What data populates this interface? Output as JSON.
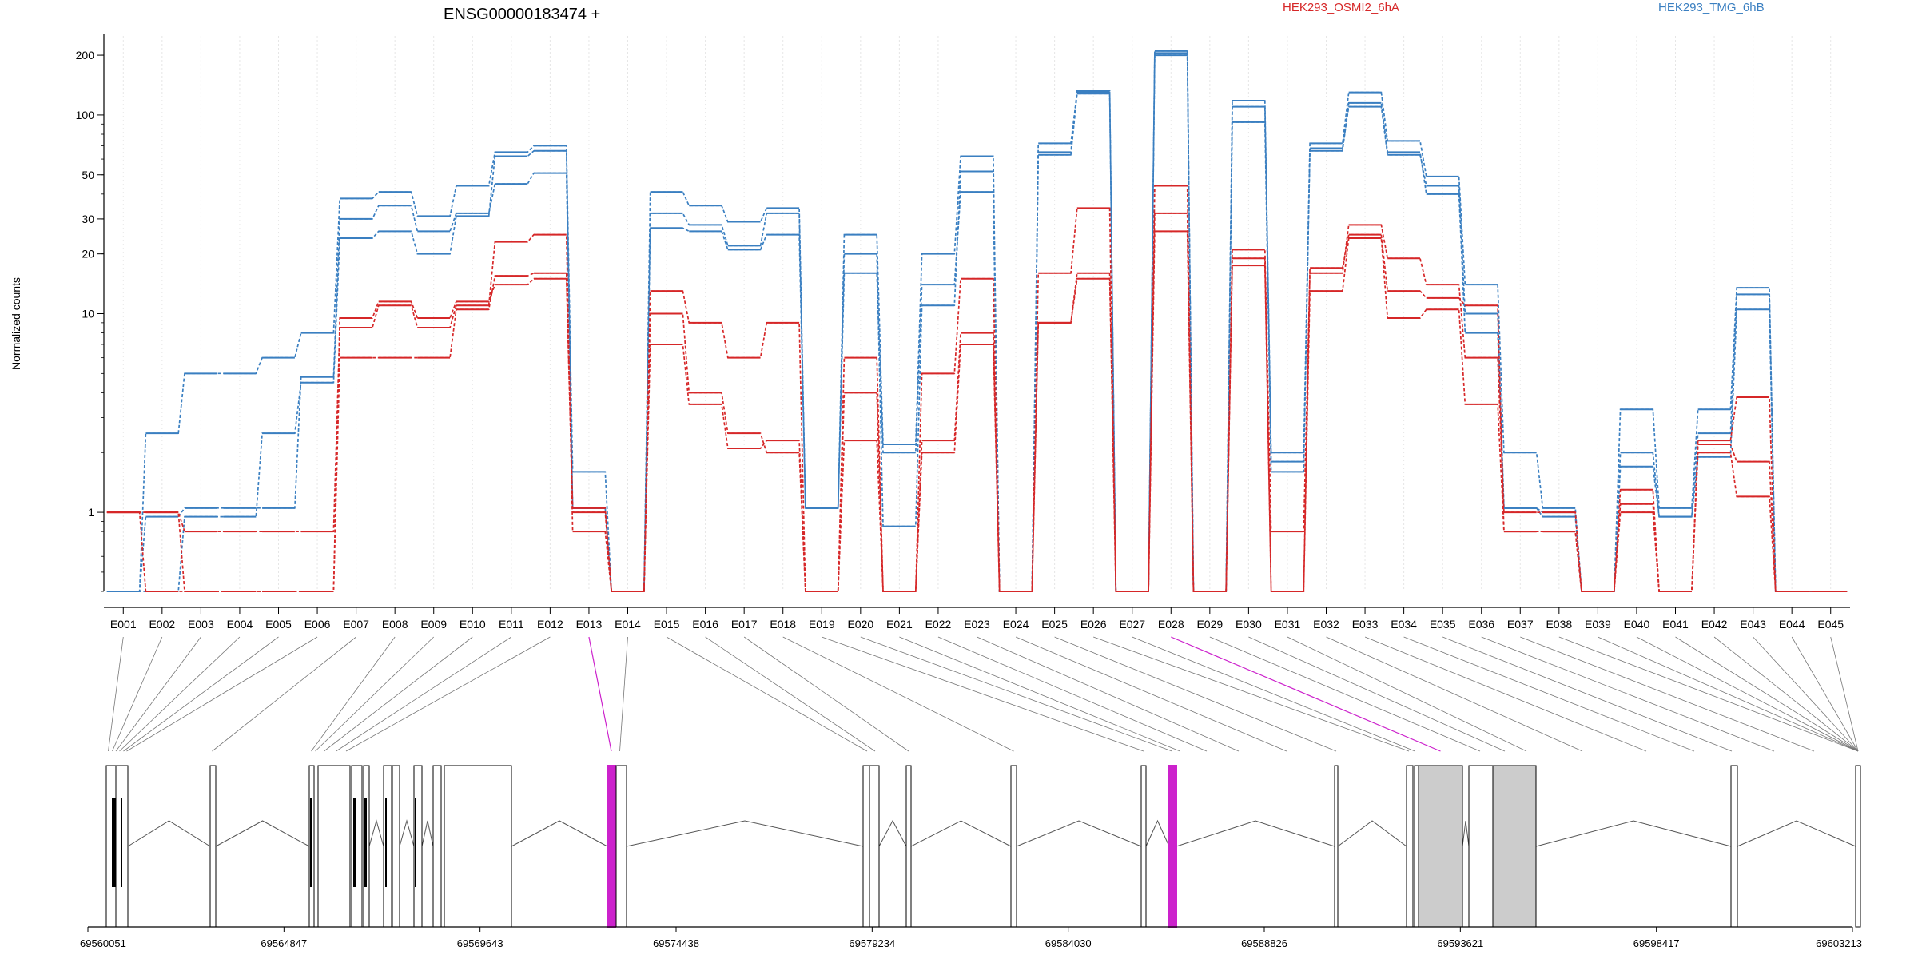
{
  "chart_data": {
    "type": "line",
    "title": "ENSG00000183474 +",
    "ylabel": "Normalized counts",
    "yscale": "log",
    "ylim": [
      0.4,
      250
    ],
    "yticks": [
      1,
      10,
      20,
      30,
      50,
      100,
      200
    ],
    "categories": [
      "E001",
      "E002",
      "E003",
      "E004",
      "E005",
      "E006",
      "E007",
      "E008",
      "E009",
      "E010",
      "E011",
      "E012",
      "E013",
      "E014",
      "E015",
      "E016",
      "E017",
      "E018",
      "E019",
      "E020",
      "E021",
      "E022",
      "E023",
      "E024",
      "E025",
      "E026",
      "E027",
      "E028",
      "E029",
      "E030",
      "E031",
      "E032",
      "E033",
      "E034",
      "E035",
      "E036",
      "E037",
      "E038",
      "E039",
      "E040",
      "E041",
      "E042",
      "E043",
      "E044",
      "E045"
    ],
    "legend": [
      {
        "name": "HEK293_OSMI2_6hA",
        "color": "#d62728"
      },
      {
        "name": "HEK293_TMG_6hB",
        "color": "#3a7fc1"
      }
    ],
    "series": [
      {
        "group": "HEK293_TMG_6hB",
        "color": "#3a7fc1",
        "values": [
          0.4,
          2.5,
          5,
          5,
          6,
          8,
          38,
          41,
          31,
          44,
          65,
          70,
          1.6,
          0.4,
          41,
          35,
          29,
          34,
          1.05,
          25,
          2.2,
          20,
          62,
          0.4,
          72,
          130,
          0.4,
          210,
          0.4,
          118,
          2,
          72,
          130,
          74,
          49,
          14,
          2,
          1.05,
          0.4,
          3.3,
          1.05,
          3.3,
          13.5,
          0.4,
          0.4
        ]
      },
      {
        "group": "HEK293_TMG_6hB",
        "color": "#3a7fc1",
        "values": [
          0.4,
          0.95,
          1.05,
          1.05,
          1.05,
          4.8,
          30,
          35,
          26,
          32,
          45,
          51,
          1.05,
          0.4,
          32,
          28,
          22,
          32,
          1.05,
          20,
          0.85,
          11,
          52,
          0.4,
          63,
          128,
          0.4,
          200,
          0.4,
          110,
          1.8,
          68,
          110,
          63,
          44,
          10,
          1.05,
          1.0,
          0.4,
          2.0,
          0.95,
          2.5,
          12.5,
          0.4,
          0.4
        ]
      },
      {
        "group": "HEK293_TMG_6hB",
        "color": "#3a7fc1",
        "values": [
          0.4,
          0.4,
          0.95,
          0.95,
          2.5,
          4.5,
          24,
          26,
          20,
          31,
          62,
          66,
          1.05,
          0.4,
          27,
          26,
          21,
          25,
          1.05,
          16,
          2.0,
          14,
          41,
          0.4,
          65,
          132,
          0.4,
          205,
          0.4,
          92,
          1.6,
          66,
          115,
          65,
          40,
          8,
          1.05,
          0.95,
          0.4,
          1.7,
          0.95,
          1.9,
          10.5,
          0.4,
          0.4
        ]
      },
      {
        "group": "HEK293_OSMI2_6hA",
        "color": "#d62728",
        "values": [
          1.0,
          1.0,
          0.8,
          0.8,
          0.8,
          0.8,
          8.5,
          11,
          8.5,
          11,
          23,
          25,
          0.8,
          0.4,
          13,
          9,
          6,
          9,
          0.4,
          6,
          0.4,
          5,
          15,
          0.4,
          16,
          34,
          0.4,
          44,
          0.4,
          21,
          0.8,
          16,
          28,
          19,
          14,
          6,
          1.0,
          1.0,
          0.4,
          1.3,
          0.4,
          2.3,
          3.8,
          0.4,
          0.4
        ]
      },
      {
        "group": "HEK293_OSMI2_6hA",
        "color": "#d62728",
        "values": [
          1.0,
          0.4,
          0.4,
          0.4,
          0.4,
          0.4,
          9.5,
          11.5,
          9.5,
          11.5,
          14,
          15,
          1.0,
          0.4,
          10,
          4,
          2.5,
          2,
          0.4,
          4,
          0.4,
          2.3,
          8,
          0.4,
          9,
          16,
          0.4,
          32,
          0.4,
          19,
          0.4,
          17,
          25,
          13,
          12,
          11,
          0.8,
          0.8,
          0.4,
          1.1,
          0.4,
          2.2,
          1.8,
          0.4,
          0.4
        ]
      },
      {
        "group": "HEK293_OSMI2_6hA",
        "color": "#d62728",
        "values": [
          1.0,
          1.0,
          0.4,
          0.4,
          0.4,
          0.4,
          6,
          6,
          6,
          10.5,
          15.5,
          16,
          1.05,
          0.4,
          7,
          3.5,
          2.1,
          2.3,
          0.4,
          2.3,
          0.4,
          2.0,
          7,
          0.4,
          9,
          15,
          0.4,
          26,
          0.4,
          17.5,
          0.4,
          13,
          24,
          9.5,
          10.5,
          3.5,
          0.8,
          0.8,
          0.4,
          1.0,
          0.4,
          2.0,
          1.2,
          0.4,
          0.4
        ]
      }
    ]
  },
  "gene_model": {
    "coordinate_labels": [
      "69560051",
      "69564847",
      "69569643",
      "69574438",
      "69579234",
      "69584030",
      "69588826",
      "69593621",
      "69598417",
      "69603213"
    ],
    "highlighted_exons": [
      "E013",
      "E028"
    ],
    "highlight_color": "#cc22cc",
    "shaded_exons": [
      "E036",
      "E037"
    ]
  }
}
